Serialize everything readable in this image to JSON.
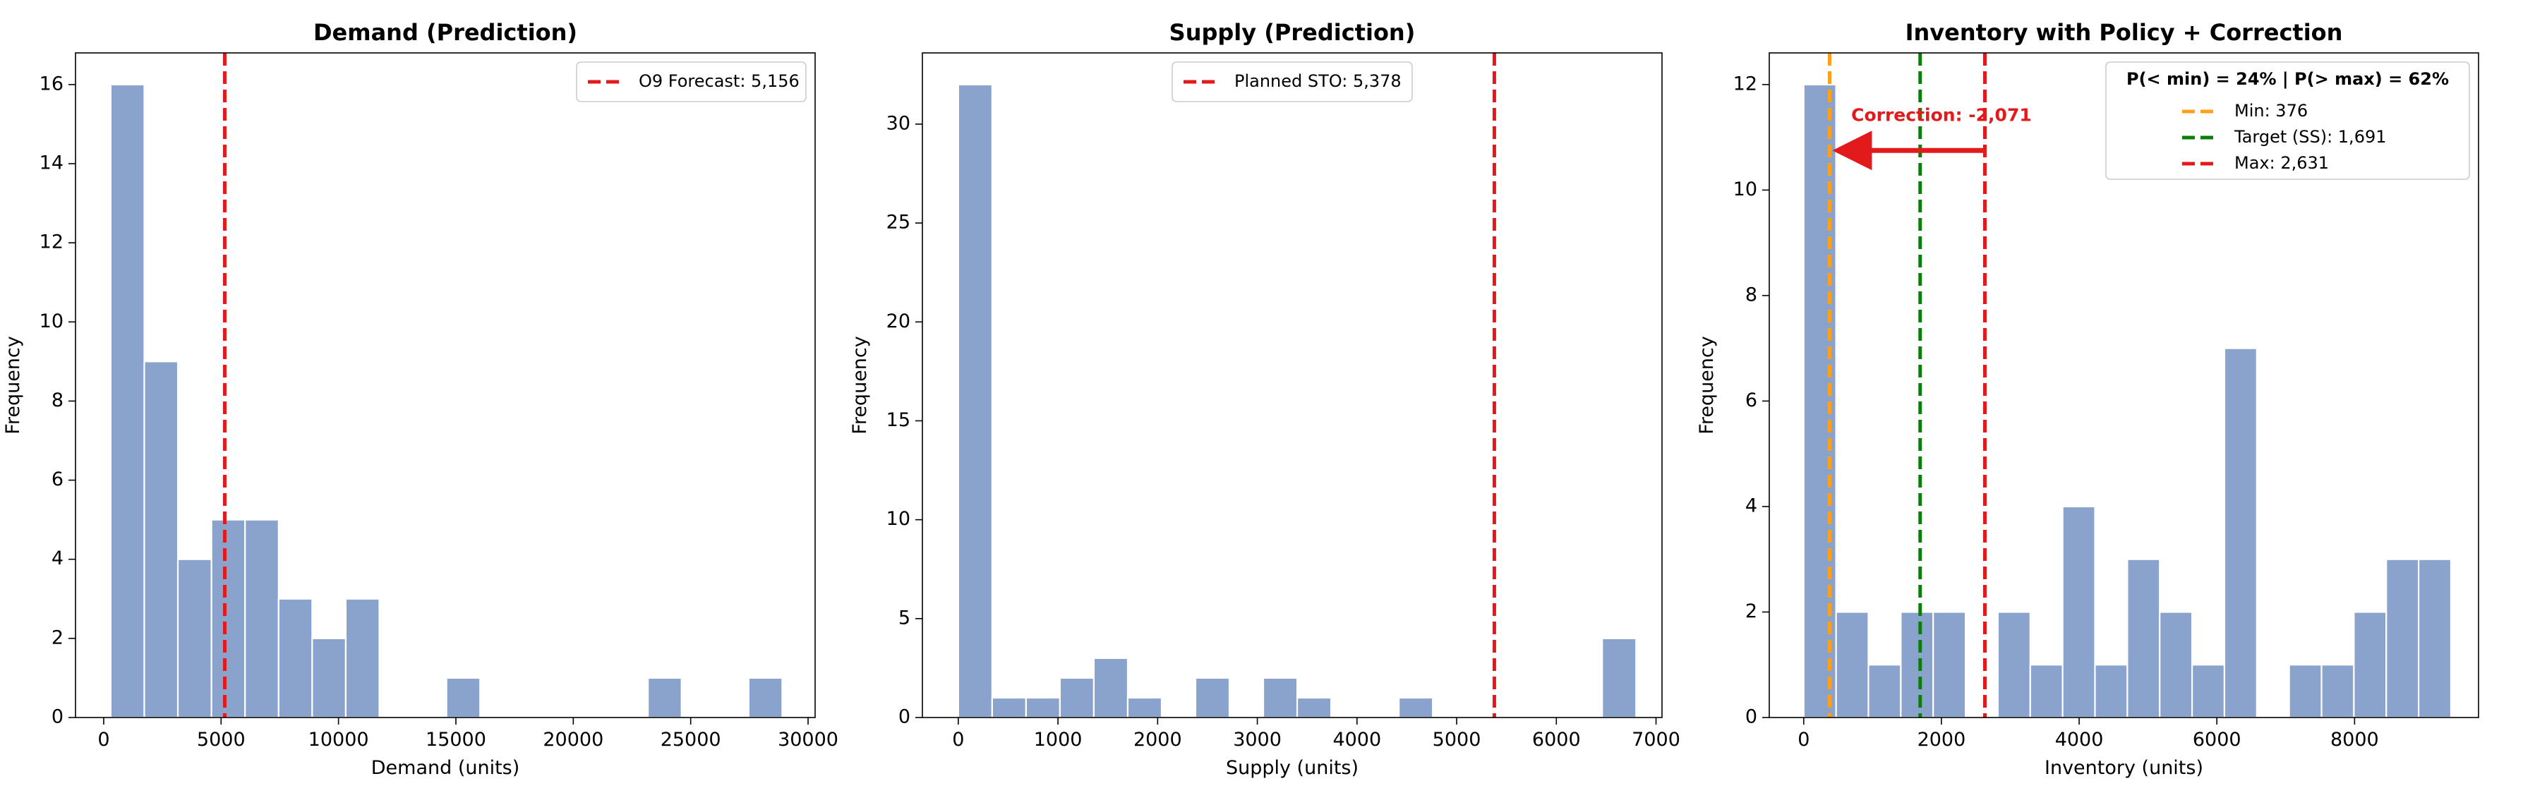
{
  "chart_data": [
    {
      "type": "bar",
      "title": "Demand (Prediction)",
      "xlabel": "Demand (units)",
      "ylabel": "Frequency",
      "xlim": [
        -1200,
        30300
      ],
      "ylim": [
        0,
        16.8
      ],
      "xticks": [
        0,
        5000,
        10000,
        15000,
        20000,
        25000,
        30000
      ],
      "yticks": [
        0,
        2,
        4,
        6,
        8,
        10,
        12,
        14,
        16
      ],
      "bar_color": "#8aa3cc",
      "bin_start": 300,
      "bin_width": 1430,
      "counts": [
        16,
        9,
        4,
        5,
        5,
        3,
        2,
        3,
        0,
        0,
        1,
        0,
        0,
        0,
        0,
        0,
        1,
        0,
        0,
        1
      ],
      "vlines": [
        {
          "x": 5156,
          "color": "#e31a1c",
          "label": "O9 Forecast: 5,156"
        }
      ],
      "legend": {
        "position": "upper right"
      }
    },
    {
      "type": "bar",
      "title": "Supply (Prediction)",
      "xlabel": "Supply (units)",
      "ylabel": "Frequency",
      "xlim": [
        -360,
        7060
      ],
      "ylim": [
        0,
        33.6
      ],
      "xticks": [
        0,
        1000,
        2000,
        3000,
        4000,
        5000,
        6000,
        7000
      ],
      "yticks": [
        0,
        5,
        10,
        15,
        20,
        25,
        30
      ],
      "bar_color": "#8aa3cc",
      "bin_start": 0,
      "bin_width": 340,
      "counts": [
        32,
        1,
        1,
        2,
        3,
        1,
        0,
        2,
        0,
        2,
        1,
        0,
        0,
        1,
        0,
        0,
        0,
        0,
        0,
        4
      ],
      "vlines": [
        {
          "x": 5378,
          "color": "#e31a1c",
          "label": "Planned STO: 5,378"
        }
      ],
      "legend": {
        "position": "upper center"
      }
    },
    {
      "type": "bar",
      "title": "Inventory with Policy + Correction",
      "xlabel": "Inventory (units)",
      "ylabel": "Frequency",
      "xlim": [
        -500,
        9800
      ],
      "ylim": [
        0,
        12.6
      ],
      "xticks": [
        0,
        2000,
        4000,
        6000,
        8000
      ],
      "yticks": [
        0,
        2,
        4,
        6,
        8,
        10,
        12
      ],
      "bar_color": "#8aa3cc",
      "bin_start": 0,
      "bin_width": 470,
      "counts": [
        12,
        2,
        1,
        2,
        2,
        0,
        2,
        1,
        4,
        1,
        3,
        2,
        1,
        7,
        0,
        1,
        1,
        2,
        3,
        3
      ],
      "vlines": [
        {
          "x": 376,
          "color": "#ff9f1a",
          "label": "Min: 376"
        },
        {
          "x": 1691,
          "color": "#0a7d0a",
          "label": "Target (SS): 1,691"
        },
        {
          "x": 2631,
          "color": "#e31a1c",
          "label": "Max: 2,631"
        }
      ],
      "legend": {
        "position": "upper right",
        "header": "P(< min) = 24%  |  P(> max) = 62%"
      },
      "annotation": {
        "text": "Correction: -2,071",
        "color": "#e31a1c",
        "arrow_from": {
          "x": 2631,
          "y": 10.75
        },
        "arrow_to": {
          "x": 560,
          "y": 10.75
        },
        "text_at": {
          "x": 2000,
          "y": 11.4
        }
      }
    }
  ]
}
